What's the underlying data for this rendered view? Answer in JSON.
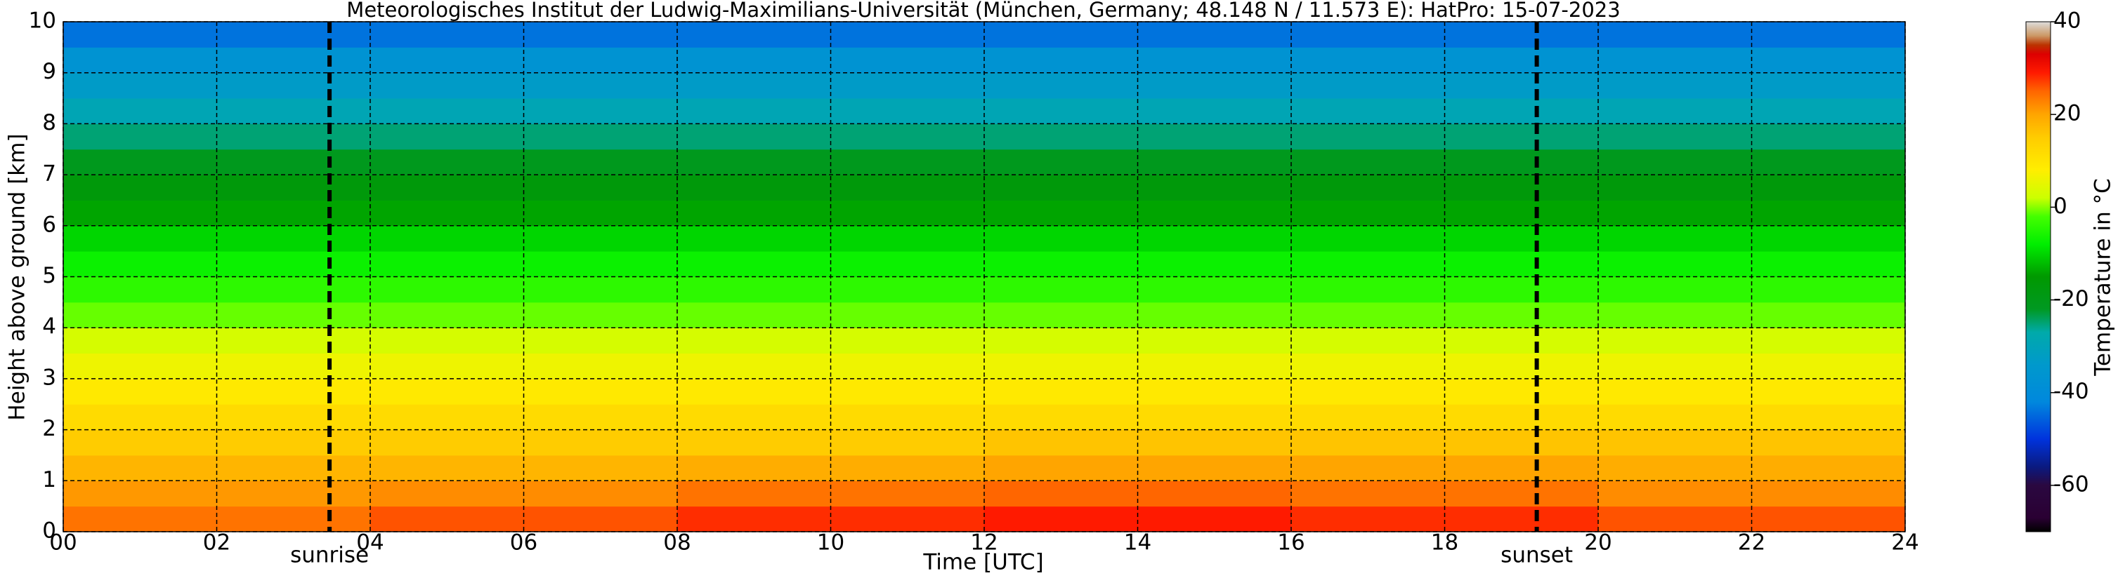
{
  "chart_data": {
    "type": "heatmap",
    "title": "Meteorologisches Institut der Ludwig-Maximilians-Universität (München, Germany; 48.148 N / 11.573 E):    HatPro: 15-07-2023",
    "x_label": "Time [UTC]",
    "y_label": "Height above ground [km]",
    "colorbar_label": "Temperature in °C",
    "x": [
      0,
      4,
      8,
      12,
      16,
      20,
      24
    ],
    "y": [
      0,
      0.5,
      1,
      1.5,
      2,
      2.5,
      3,
      3.5,
      4,
      4.5,
      5,
      5.5,
      6,
      6.5,
      7,
      7.5,
      8,
      8.5,
      9,
      9.5,
      10
    ],
    "z": [
      [
        24,
        26,
        28,
        29,
        28,
        26
      ],
      [
        21,
        22,
        24,
        25,
        24,
        22
      ],
      [
        18,
        18,
        19,
        20,
        20,
        19
      ],
      [
        15,
        15,
        15,
        16,
        16,
        16
      ],
      [
        12,
        12,
        12,
        12,
        12,
        12
      ],
      [
        9,
        9,
        9,
        9,
        9,
        9
      ],
      [
        6,
        6,
        6,
        6,
        6,
        6
      ],
      [
        3,
        3,
        3,
        3,
        3,
        3
      ],
      [
        -1,
        -1,
        -1,
        -1,
        -1,
        -1
      ],
      [
        -4,
        -4,
        -4,
        -4,
        -4,
        -4
      ],
      [
        -7,
        -7,
        -7,
        -7,
        -7,
        -7
      ],
      [
        -10,
        -10,
        -10,
        -10,
        -10,
        -10
      ],
      [
        -14,
        -14,
        -14,
        -14,
        -14,
        -14
      ],
      [
        -17,
        -17,
        -17,
        -17,
        -17,
        -17
      ],
      [
        -21,
        -21,
        -21,
        -21,
        -21,
        -21
      ],
      [
        -25,
        -25,
        -25,
        -25,
        -25,
        -25
      ],
      [
        -29,
        -29,
        -29,
        -29,
        -29,
        -29
      ],
      [
        -33,
        -33,
        -33,
        -33,
        -33,
        -33
      ],
      [
        -37,
        -37,
        -37,
        -37,
        -37,
        -37
      ],
      [
        -44,
        -44,
        -44,
        -44,
        -44,
        -44
      ]
    ],
    "xlim": [
      0,
      24
    ],
    "xticks": [
      {
        "value": 0,
        "label": "00"
      },
      {
        "value": 2,
        "label": "02"
      },
      {
        "value": 4,
        "label": "04"
      },
      {
        "value": 6,
        "label": "06"
      },
      {
        "value": 8,
        "label": "08"
      },
      {
        "value": 10,
        "label": "10"
      },
      {
        "value": 12,
        "label": "12"
      },
      {
        "value": 14,
        "label": "14"
      },
      {
        "value": 16,
        "label": "16"
      },
      {
        "value": 18,
        "label": "18"
      },
      {
        "value": 20,
        "label": "20"
      },
      {
        "value": 22,
        "label": "22"
      },
      {
        "value": 24,
        "label": "24"
      }
    ],
    "ylim": [
      0,
      10
    ],
    "yticks": [
      0,
      1,
      2,
      3,
      4,
      5,
      6,
      7,
      8,
      9,
      10
    ],
    "clim": [
      -70,
      40
    ],
    "cticks": [
      -60,
      -40,
      -20,
      0,
      20,
      40
    ],
    "colorscale": [
      [
        -70,
        "#000000"
      ],
      [
        -67,
        "#2a0033"
      ],
      [
        -60,
        "#2a0840"
      ],
      [
        -56,
        "#0a1a80"
      ],
      [
        -50,
        "#0033dd"
      ],
      [
        -42,
        "#0088dd"
      ],
      [
        -34,
        "#0099cc"
      ],
      [
        -27,
        "#00aaaa"
      ],
      [
        -22,
        "#009922"
      ],
      [
        -15,
        "#009900"
      ],
      [
        -8,
        "#00ee00"
      ],
      [
        -2,
        "#44ff00"
      ],
      [
        2,
        "#ccff00"
      ],
      [
        8,
        "#ffee00"
      ],
      [
        15,
        "#ffcc00"
      ],
      [
        20,
        "#ffa500"
      ],
      [
        25,
        "#ff6600"
      ],
      [
        29,
        "#ff1a00"
      ],
      [
        33,
        "#dd0000"
      ],
      [
        35,
        "#bb3300"
      ],
      [
        37,
        "#cc9966"
      ],
      [
        40,
        "#dddddd"
      ]
    ],
    "grid": true,
    "annotations": [
      {
        "label": "sunrise",
        "x": 3.47
      },
      {
        "label": "sunset",
        "x": 19.2
      }
    ]
  }
}
